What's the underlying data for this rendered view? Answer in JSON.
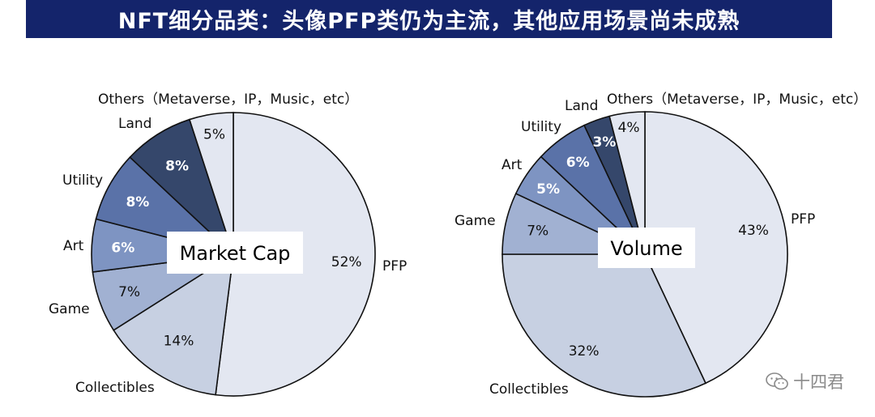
{
  "title": "NFT细分品类：头像PFP类仍为主流，其他应用场景尚未成熟",
  "watermark": {
    "text": "十四君",
    "icon": "wechat-icon"
  },
  "colors": {
    "banner": "#14246b",
    "slices": {
      "PFP": "#e3e7f1",
      "Collectibles": "#c7d0e2",
      "Game": "#a1b1d2",
      "Art": "#7e94c2",
      "Utility": "#5a72a8",
      "Land": "#35476b",
      "Others": "#e3e7f1"
    }
  },
  "chart_data": [
    {
      "type": "pie",
      "title": "Market Cap",
      "categories": [
        "PFP",
        "Collectibles",
        "Game",
        "Art",
        "Utility",
        "Land",
        "Others（Metaverse，IP，Music，etc）"
      ],
      "values": [
        52,
        14,
        7,
        6,
        8,
        8,
        5
      ],
      "value_labels": [
        "52%",
        "14%",
        "7%",
        "6%",
        "8%",
        "8%",
        "5%"
      ]
    },
    {
      "type": "pie",
      "title": "Volume",
      "categories": [
        "PFP",
        "Collectibles",
        "Game",
        "Art",
        "Utility",
        "Land",
        "Others（Metaverse，IP，Music，etc）"
      ],
      "values": [
        43,
        32,
        7,
        5,
        6,
        3,
        4
      ],
      "value_labels": [
        "43%",
        "32%",
        "7%",
        "5%",
        "6%",
        "3%",
        "4%"
      ]
    }
  ]
}
